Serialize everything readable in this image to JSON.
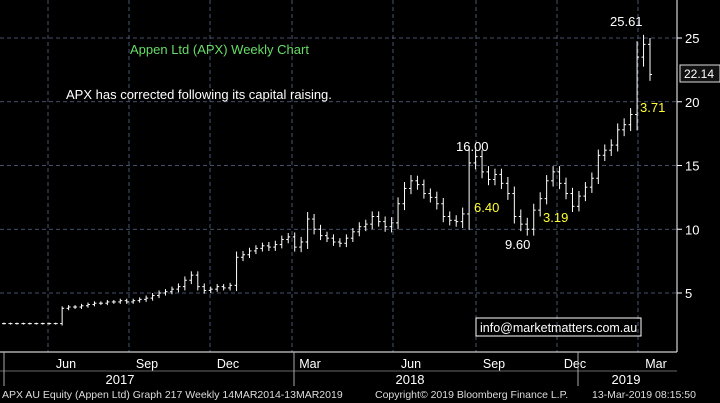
{
  "chart_data": {
    "type": "ohlc",
    "title": "Appen Ltd (APX) Weekly Chart",
    "subtitle": "APX has corrected following its capital raising.",
    "contact": "info@marketmatters.com.au",
    "last_price_label": "22.14",
    "y_ticks": [
      5,
      10,
      15,
      20,
      25
    ],
    "ylim": [
      2,
      29
    ],
    "x_month_labels": [
      "Jun",
      "Sep",
      "Dec",
      "Mar",
      "Jun",
      "Sep",
      "Dec",
      "Mar"
    ],
    "x_year_labels": [
      "2017",
      "2018",
      "2019"
    ],
    "grid": true,
    "annotations": [
      {
        "text": "25.61",
        "value": 25.61,
        "color": "#ffffff"
      },
      {
        "text": "16.00",
        "value": 16.0,
        "color": "#ffffff"
      },
      {
        "text": "9.60",
        "value": 9.6,
        "color": "#ffffff"
      },
      {
        "text": "6.40",
        "value": 6.4,
        "color": "#ffff33"
      },
      {
        "text": "3.19",
        "value": 3.19,
        "color": "#ffff33"
      },
      {
        "text": "3.71",
        "value": 3.71,
        "color": "#ffff33"
      }
    ],
    "series": [
      {
        "start_month": "2017-03",
        "weekly_close": [
          2.6,
          2.6,
          2.6,
          2.6,
          2.6,
          2.6,
          2.6,
          2.6,
          2.6,
          3.8,
          3.9,
          3.9,
          4.0,
          4.1,
          4.2,
          4.2,
          4.3,
          4.3,
          4.4,
          4.3,
          4.4,
          4.5,
          4.6,
          4.8,
          5.0,
          5.1,
          5.3,
          5.5,
          6.0,
          6.4,
          5.5,
          5.2,
          5.3,
          5.5,
          5.4,
          5.6,
          7.8,
          8.0,
          8.3,
          8.5,
          8.7,
          8.6,
          8.8,
          9.2,
          9.4,
          8.6,
          9.0,
          10.8,
          10.0,
          9.5,
          9.3,
          9.0,
          8.9,
          9.3,
          9.8,
          10.2,
          10.4,
          11.0,
          10.6,
          10.2,
          10.5,
          12.0,
          13.2,
          13.8,
          13.5,
          12.8,
          12.5,
          12.0,
          11.0,
          10.7,
          10.6,
          11.2,
          15.2,
          15.7,
          14.5,
          13.9,
          14.3,
          13.6,
          12.8,
          11.0,
          10.4,
          10.0,
          11.5,
          12.4,
          13.8,
          14.5,
          13.6,
          12.8,
          11.8,
          12.6,
          13.3,
          14.0,
          15.8,
          16.2,
          16.6,
          17.8,
          18.2,
          19.0,
          23.5,
          24.5,
          22.14
        ],
        "range": [
          0.15,
          0.15,
          0.15,
          0.15,
          0.15,
          0.15,
          0.15,
          0.15,
          0.15,
          0.3,
          0.3,
          0.3,
          0.3,
          0.3,
          0.3,
          0.3,
          0.3,
          0.3,
          0.3,
          0.3,
          0.3,
          0.3,
          0.4,
          0.4,
          0.4,
          0.4,
          0.4,
          0.5,
          0.6,
          0.6,
          0.6,
          0.5,
          0.4,
          0.4,
          0.4,
          0.4,
          0.9,
          0.6,
          0.5,
          0.5,
          0.5,
          0.6,
          0.6,
          0.6,
          0.6,
          0.7,
          0.8,
          1.1,
          0.8,
          0.7,
          0.6,
          0.6,
          0.6,
          0.6,
          0.6,
          0.7,
          0.7,
          0.8,
          0.8,
          0.8,
          0.9,
          1.0,
          1.0,
          0.9,
          0.8,
          0.8,
          0.8,
          0.9,
          0.9,
          0.8,
          0.8,
          1.0,
          2.5,
          1.0,
          1.0,
          0.9,
          0.9,
          0.9,
          1.0,
          1.1,
          1.1,
          1.0,
          1.0,
          1.0,
          0.9,
          0.9,
          0.9,
          0.9,
          0.9,
          0.8,
          0.8,
          0.9,
          0.9,
          0.9,
          0.9,
          1.0,
          1.0,
          1.0,
          2.5,
          1.5,
          1.0
        ]
      }
    ]
  },
  "footer": {
    "left": "APX AU Equity (Appen Ltd) Graph 217  Weekly 14MAR2014-13MAR2019",
    "center": "Copyright© 2019 Bloomberg Finance L.P.",
    "right": "13-Mar-2019 08:15:50"
  }
}
